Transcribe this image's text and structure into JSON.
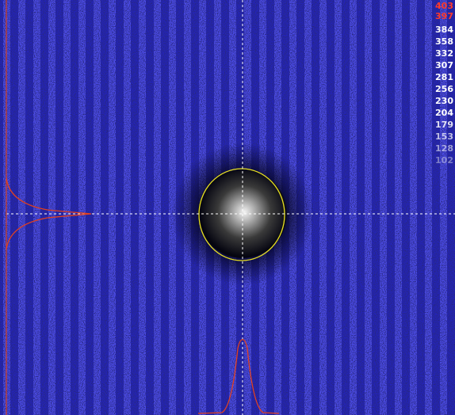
{
  "scale": {
    "labels": [
      "403",
      "397",
      "384",
      "358",
      "332",
      "307",
      "281",
      "256",
      "230",
      "204",
      "179",
      "153",
      "128",
      "102"
    ]
  }
}
